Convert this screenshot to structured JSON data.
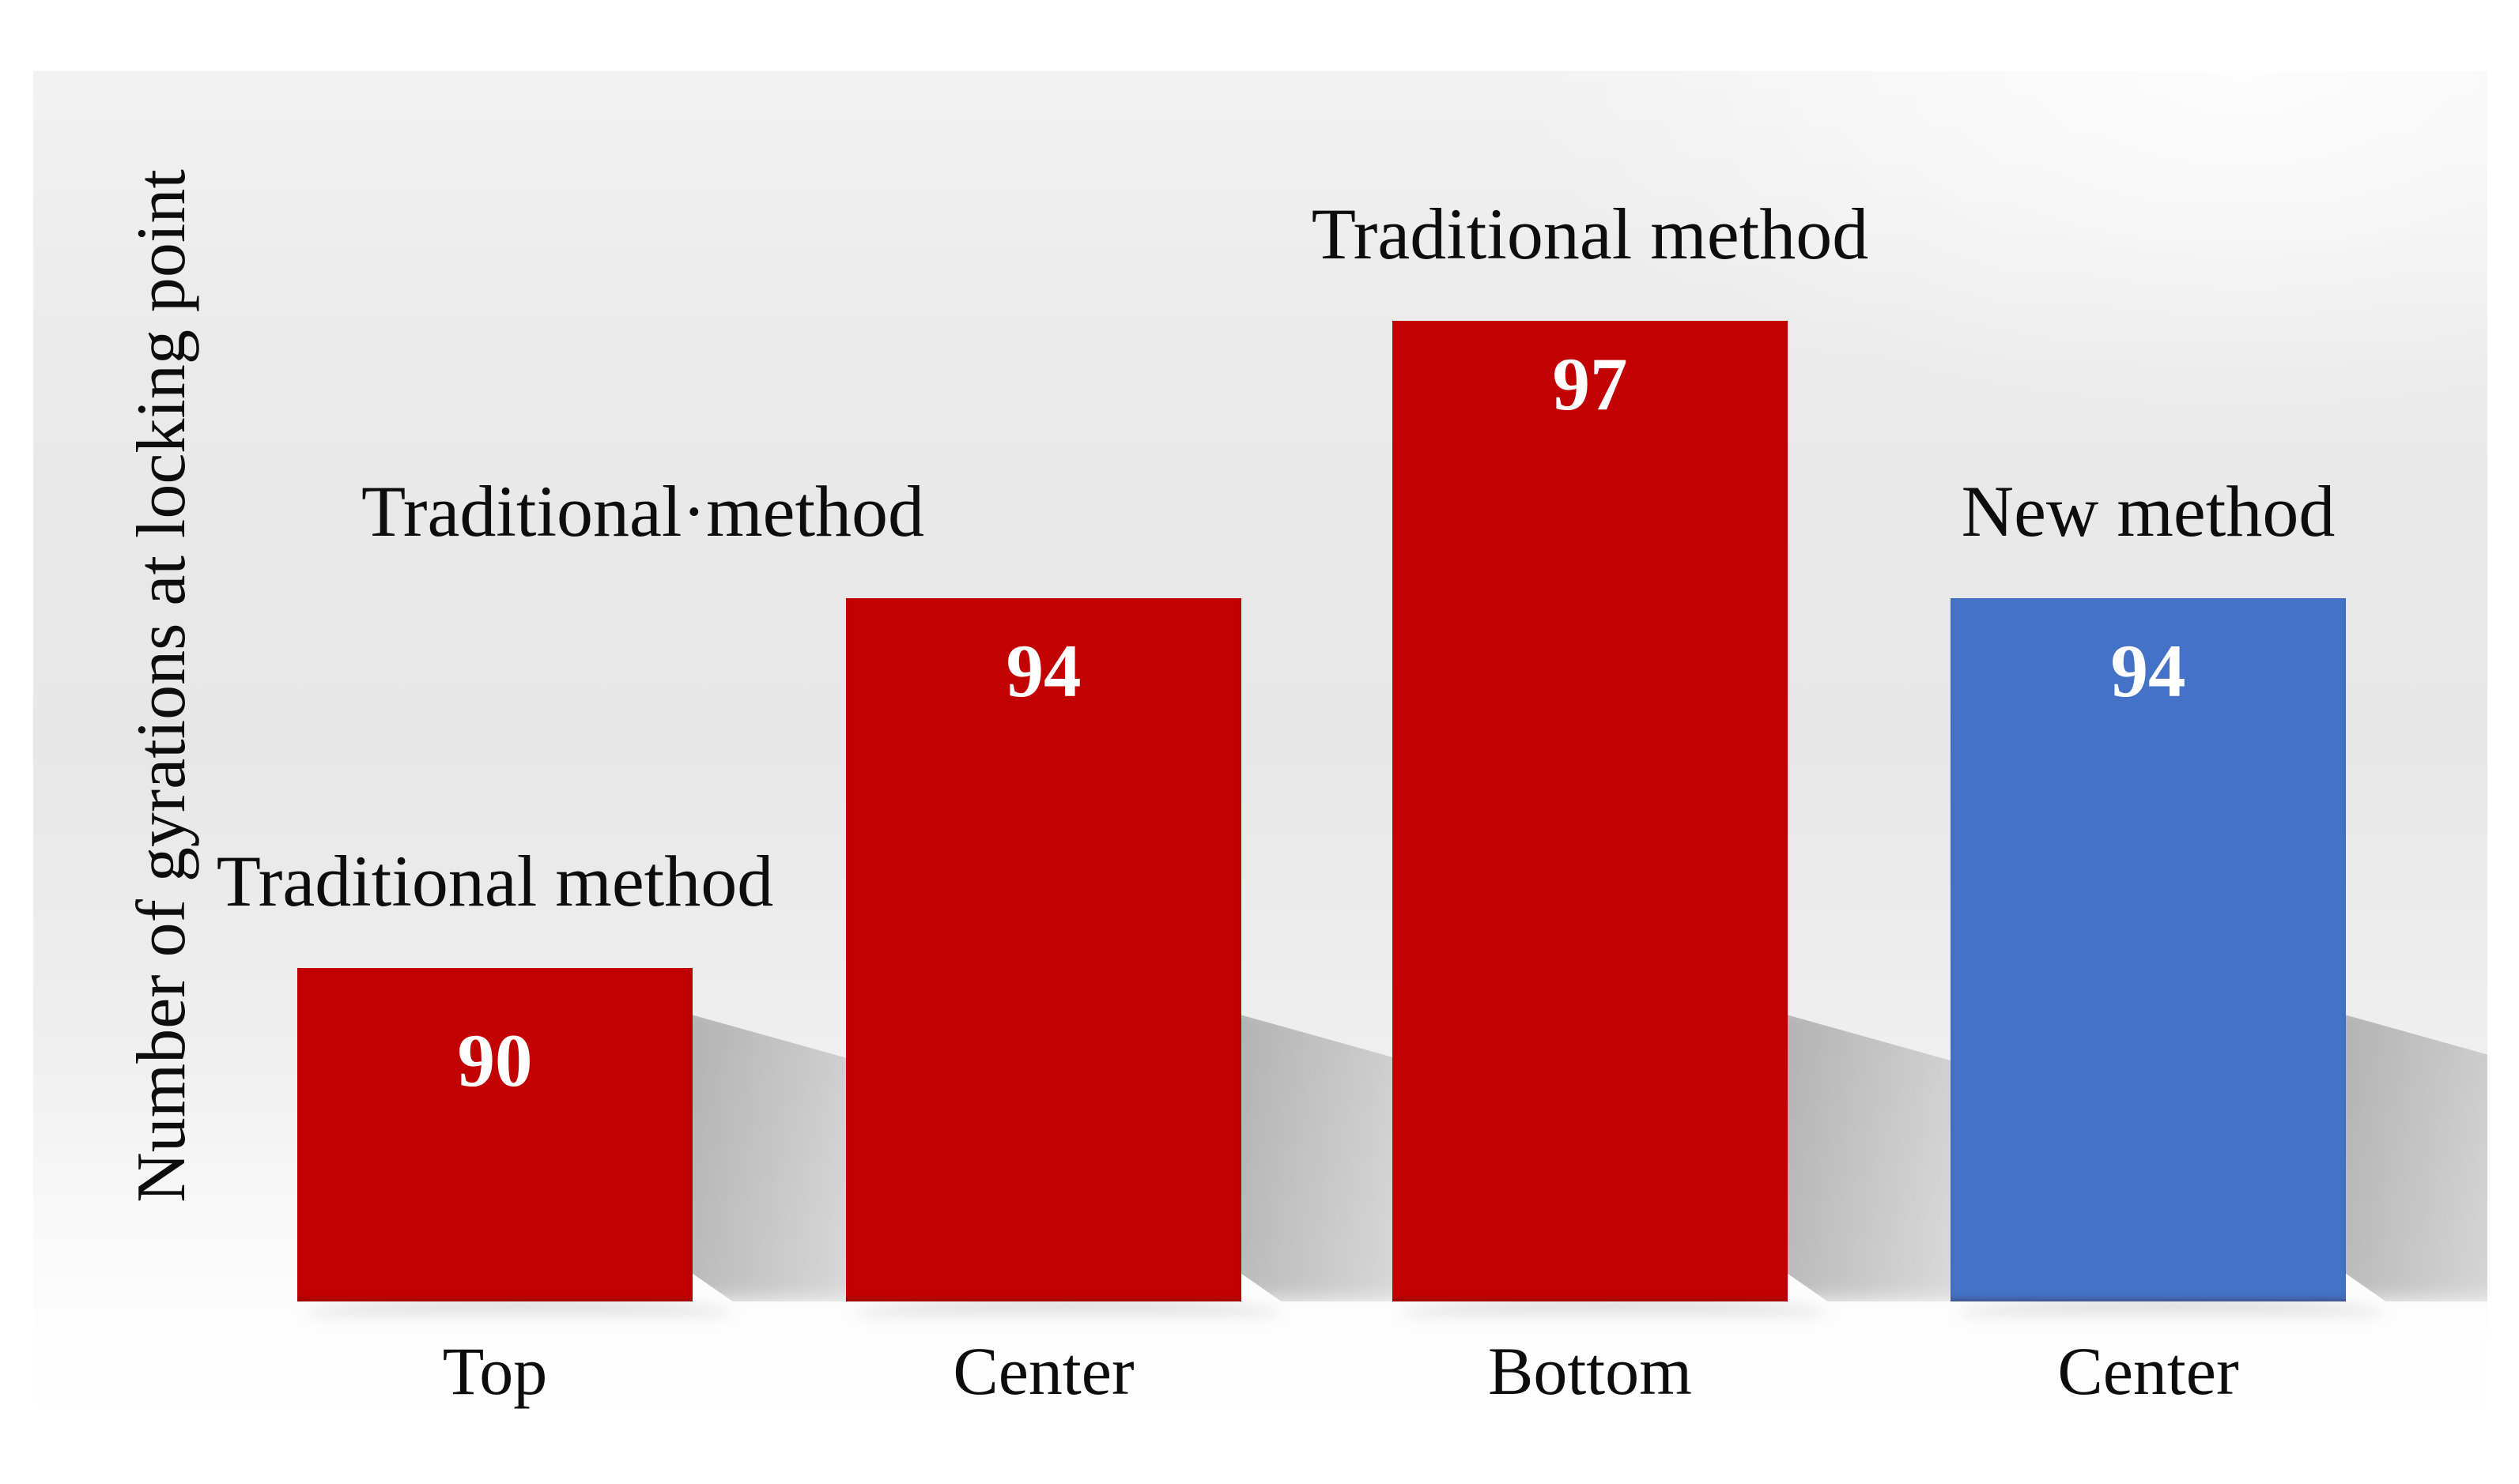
{
  "chart_data": {
    "type": "bar",
    "title": "",
    "xlabel": "",
    "ylabel": "Number of gyrations at locking point",
    "categories": [
      "Top",
      "Center",
      "Bottom",
      "Center"
    ],
    "values": [
      90,
      94,
      97,
      94
    ],
    "bar_labels": [
      "Traditional method",
      "Traditional·method",
      "Traditional method",
      "New method"
    ],
    "value_labels": [
      "90",
      "94",
      "97",
      "94"
    ],
    "series": [
      {
        "name": "Traditional method",
        "color": "#c20202",
        "category_indices": [
          0,
          1,
          2
        ]
      },
      {
        "name": "New method",
        "color": "#4472c6",
        "category_indices": [
          3
        ]
      }
    ],
    "bar_colors": [
      "#c20202",
      "#c20202",
      "#c20202",
      "#4472c6"
    ],
    "ylim": [
      86.4,
      99.3
    ],
    "grid": false,
    "legend_position": "none",
    "annotations_note": "method name written above each bar; value printed in white inside top of each bar"
  },
  "colors": {
    "bar_red": "#c20202",
    "bar_blue": "#4472c6",
    "value_text": "#ffffff",
    "label_text": "#0d0d0d",
    "background_top": "#eaeaea",
    "background_bottom": "#ffffff"
  }
}
